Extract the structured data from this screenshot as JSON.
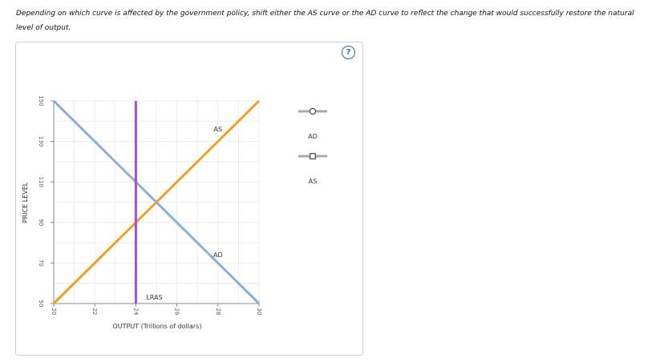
{
  "instructions": "Depending on which curve is affected by the government policy, shift either the AS curve or the AD curve to reflect the change that would successfully restore the natural level of output.",
  "help_label": "?",
  "colors": {
    "as": "#f0a020",
    "ad": "#8bb0d8",
    "lras": "#a64fcf",
    "grid": "#ececec",
    "axis": "#888888"
  },
  "chart_data": {
    "type": "line",
    "xlabel": "OUTPUT (Trillions of dollars)",
    "ylabel": "PRICE LEVEL",
    "xlim": [
      20,
      30
    ],
    "ylim": [
      50,
      150
    ],
    "xticks": [
      20,
      22,
      24,
      26,
      28,
      30
    ],
    "yticks": [
      50,
      70,
      90,
      110,
      130,
      150
    ],
    "grid": true,
    "series": [
      {
        "name": "AS",
        "points": [
          [
            20,
            50
          ],
          [
            30,
            150
          ]
        ],
        "label_at": [
          28,
          135
        ]
      },
      {
        "name": "AD",
        "points": [
          [
            20,
            150
          ],
          [
            30,
            50
          ]
        ],
        "label_at": [
          28,
          73
        ]
      },
      {
        "name": "LRAS",
        "points": [
          [
            24,
            50
          ],
          [
            24,
            150
          ]
        ],
        "label_at": [
          24.9,
          52
        ]
      }
    ]
  },
  "legend": {
    "items": [
      {
        "label": "AD",
        "marker": "circle"
      },
      {
        "label": "AS",
        "marker": "square"
      }
    ]
  }
}
